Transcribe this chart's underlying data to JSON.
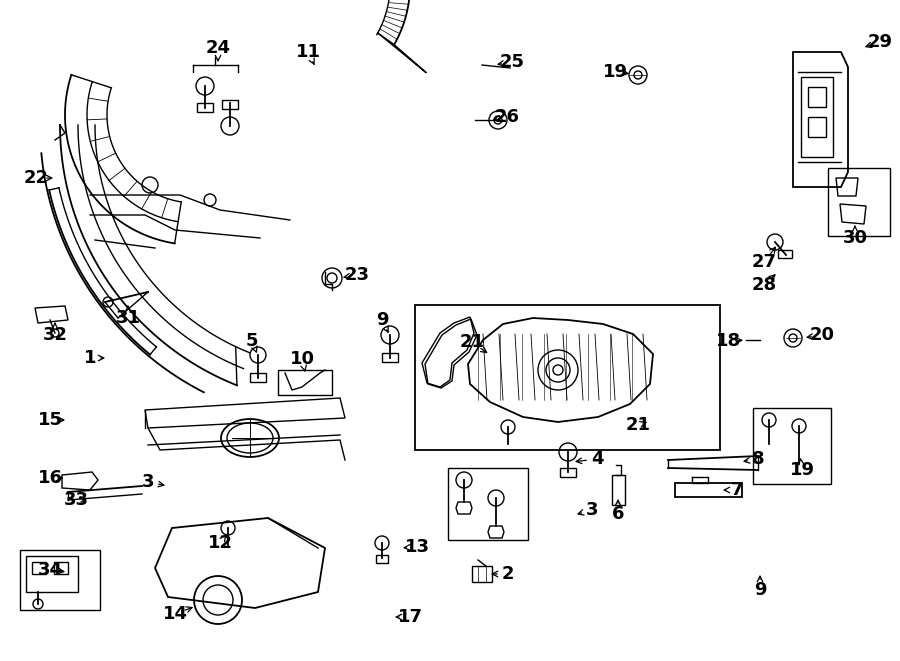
{
  "bg_color": "#ffffff",
  "line_color": "#000000",
  "label_fontsize": 13,
  "arrow_color": "#000000",
  "label_positions": [
    [
      90,
      358,
      "1",
      108,
      358
    ],
    [
      508,
      574,
      "2",
      488,
      574
    ],
    [
      148,
      482,
      "3",
      168,
      486
    ],
    [
      592,
      510,
      "3",
      574,
      515
    ],
    [
      597,
      459,
      "4",
      572,
      462
    ],
    [
      252,
      341,
      "5",
      258,
      356
    ],
    [
      618,
      514,
      "6",
      618,
      496
    ],
    [
      737,
      490,
      "7",
      720,
      490
    ],
    [
      758,
      459,
      "8",
      740,
      462
    ],
    [
      382,
      320,
      "9",
      390,
      336
    ],
    [
      760,
      590,
      "9",
      760,
      572
    ],
    [
      302,
      359,
      "10",
      306,
      375
    ],
    [
      308,
      52,
      "11",
      316,
      68
    ],
    [
      220,
      543,
      "12",
      228,
      532
    ],
    [
      417,
      547,
      "13",
      400,
      548
    ],
    [
      175,
      614,
      "14",
      196,
      606
    ],
    [
      50,
      420,
      "15",
      68,
      420
    ],
    [
      50,
      478,
      "16",
      66,
      478
    ],
    [
      410,
      617,
      "17",
      392,
      617
    ],
    [
      728,
      341,
      "18",
      746,
      340
    ],
    [
      615,
      72,
      "19",
      632,
      74
    ],
    [
      802,
      470,
      "19",
      800,
      455
    ],
    [
      822,
      335,
      "20",
      803,
      338
    ],
    [
      472,
      342,
      "21",
      490,
      355
    ],
    [
      638,
      425,
      "21",
      647,
      422
    ],
    [
      36,
      178,
      "22",
      56,
      178
    ],
    [
      357,
      275,
      "23",
      340,
      278
    ],
    [
      218,
      48,
      "24",
      218,
      65
    ],
    [
      512,
      62,
      "25",
      494,
      65
    ],
    [
      507,
      117,
      "26",
      490,
      120
    ],
    [
      764,
      262,
      "27",
      778,
      244
    ],
    [
      764,
      285,
      "28",
      778,
      272
    ],
    [
      880,
      42,
      "29",
      862,
      48
    ],
    [
      855,
      238,
      "30",
      855,
      225
    ],
    [
      128,
      318,
      "31",
      128,
      305
    ],
    [
      55,
      335,
      "32",
      55,
      322
    ],
    [
      76,
      500,
      "33",
      90,
      498
    ],
    [
      50,
      570,
      "34",
      68,
      572
    ]
  ]
}
